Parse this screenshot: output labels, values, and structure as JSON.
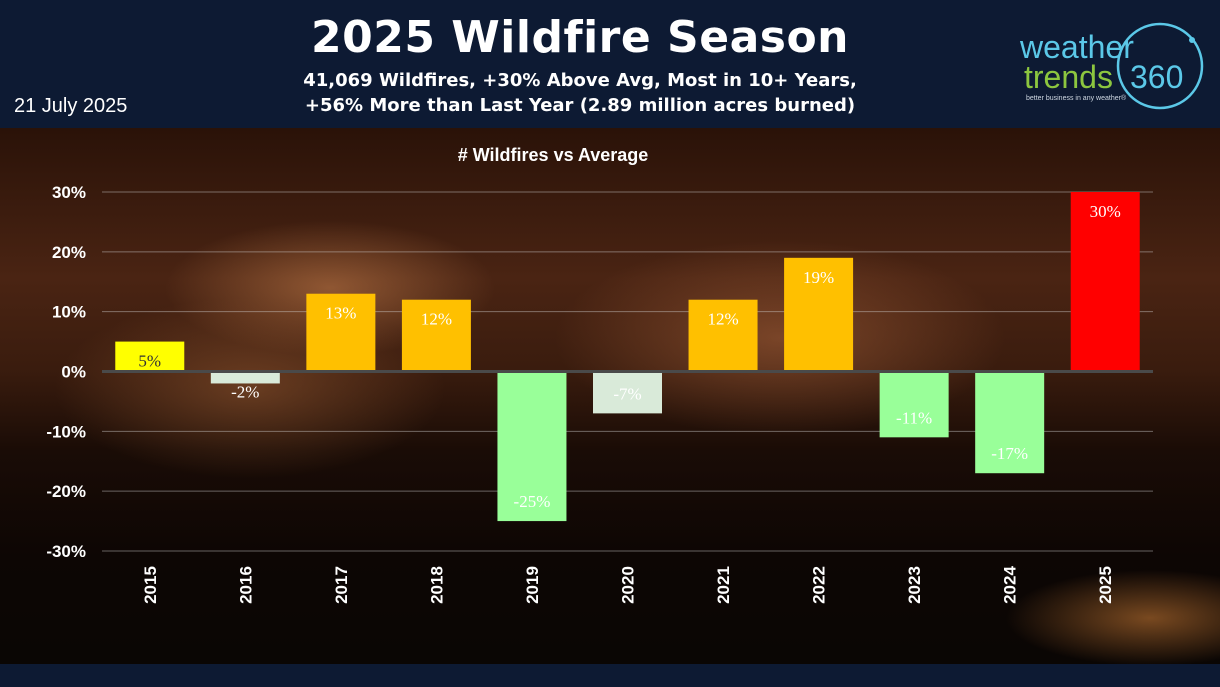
{
  "header": {
    "title": "2025 Wildfire Season",
    "subtitle_line1": "41,069 Wildfires, +30% Above Avg, Most in 10+ Years,",
    "subtitle_line2": "+56% More than Last Year (2.89 million acres burned)",
    "date": "21 July 2025"
  },
  "logo": {
    "line1": "weather",
    "line2": "trends",
    "line2_suffix": "360",
    "tagline": "better business in any weather®",
    "colors": {
      "weather": "#5bc8e8",
      "trends": "#8cc63f",
      "ring": "#5bc8e8"
    }
  },
  "chart_data": {
    "type": "bar",
    "title": "# Wildfires vs Average",
    "categories": [
      "2015",
      "2016",
      "2017",
      "2018",
      "2019",
      "2020",
      "2021",
      "2022",
      "2023",
      "2024",
      "2025"
    ],
    "values": [
      5,
      -2,
      13,
      12,
      -25,
      -7,
      12,
      19,
      -11,
      -17,
      30
    ],
    "value_labels": [
      "5%",
      "-2%",
      "13%",
      "12%",
      "-25%",
      "-7%",
      "12%",
      "19%",
      "-11%",
      "-17%",
      "30%"
    ],
    "bar_colors": [
      "#ffff00",
      "#d9ead9",
      "#ffc000",
      "#ffc000",
      "#99ff99",
      "#d9ead9",
      "#ffc000",
      "#ffc000",
      "#99ff99",
      "#99ff99",
      "#ff0000"
    ],
    "label_colors": [
      "#333333",
      "#ffffff",
      "#ffffff",
      "#ffffff",
      "#ffffff",
      "#ffffff",
      "#ffffff",
      "#ffffff",
      "#ffffff",
      "#ffffff",
      "#ffffff"
    ],
    "yticks": [
      30,
      20,
      10,
      0,
      -10,
      -20,
      -30
    ],
    "ytick_labels": [
      "30%",
      "20%",
      "10%",
      "0%",
      "-10%",
      "-20%",
      "-30%"
    ],
    "ylim": [
      -30,
      30
    ],
    "grid": true
  }
}
